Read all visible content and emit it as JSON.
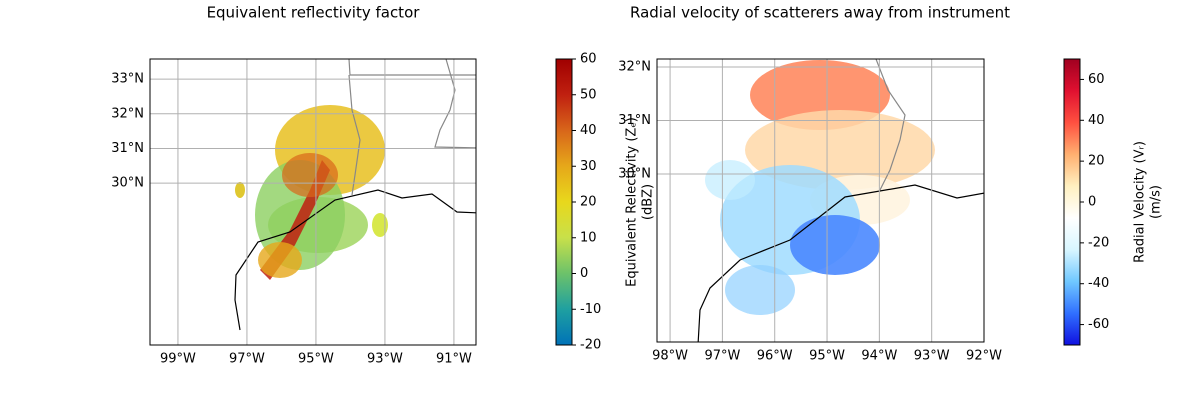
{
  "maps": [
    {
      "title": "Equivalent reflectivity factor",
      "xlim": [
        -99.81,
        -90.36
      ],
      "ylim": [
        25.33,
        33.58
      ],
      "xticks": [
        {
          "value": -99,
          "label": "99°W"
        },
        {
          "value": -97,
          "label": "97°W"
        },
        {
          "value": -95,
          "label": "95°W"
        },
        {
          "value": -93,
          "label": "93°W"
        },
        {
          "value": -91,
          "label": "91°W"
        }
      ],
      "yticks": [
        {
          "value": 33,
          "label": "33°N"
        },
        {
          "value": 32,
          "label": "32°N"
        },
        {
          "value": 31,
          "label": "31°N"
        },
        {
          "value": 30,
          "label": "30°N"
        }
      ],
      "grid": true
    },
    {
      "title": "Radial velocity of scatterers away from instrument",
      "xlim": [
        -98.25,
        -92
      ],
      "ylim": [
        26.86,
        32.15
      ],
      "xticks": [
        {
          "value": -98,
          "label": "98°W"
        },
        {
          "value": -97,
          "label": "97°W"
        },
        {
          "value": -96,
          "label": "96°W"
        },
        {
          "value": -95,
          "label": "95°W"
        },
        {
          "value": -94,
          "label": "94°W"
        },
        {
          "value": -93,
          "label": "93°W"
        },
        {
          "value": -92,
          "label": "92°W"
        }
      ],
      "yticks": [
        {
          "value": 32,
          "label": "32°N"
        },
        {
          "value": 31,
          "label": "31°N"
        },
        {
          "value": 30,
          "label": "30°N"
        }
      ],
      "grid": true
    }
  ],
  "colorbars": [
    {
      "label": [
        "Equivalent Relectivity (Zₑ)",
        "(dBZ)"
      ],
      "lim": [
        -20,
        60
      ],
      "ticks": [
        -20,
        -10,
        0,
        10,
        20,
        30,
        40,
        50,
        60
      ],
      "colors": [
        "#0072b8",
        "#1fa0a0",
        "#6cc26a",
        "#c8e04a",
        "#e8d81c",
        "#e6a81a",
        "#d8661a",
        "#c02010",
        "#a00000"
      ]
    },
    {
      "label": [
        "Radial Velocity (Vᵣ)",
        "(m/s)"
      ],
      "lim": [
        -70,
        70
      ],
      "ticks": [
        -60,
        -40,
        -20,
        0,
        20,
        40,
        60
      ],
      "colors": [
        "#1010e0",
        "#3070ff",
        "#70c8ff",
        "#d8f6ff",
        "#ffffff",
        "#fff0c0",
        "#ffb070",
        "#ff5040",
        "#e01030",
        "#a00020"
      ]
    }
  ]
}
